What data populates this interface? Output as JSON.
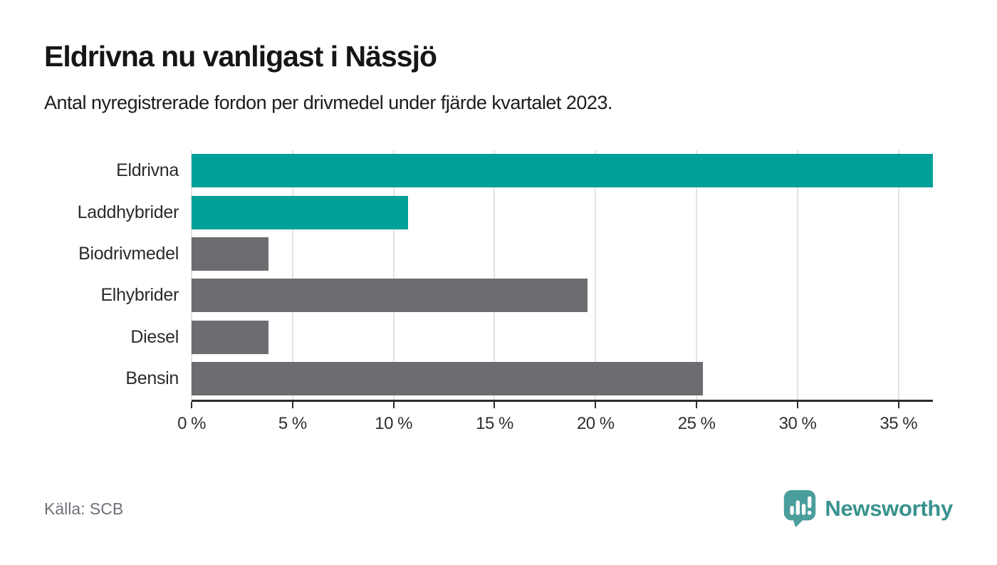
{
  "chart_data": {
    "type": "bar",
    "orientation": "horizontal",
    "title": "Eldrivna nu vanligast i Nässjö",
    "subtitle": "Antal nyregistrerade fordon per drivmedel under fjärde kvartalet 2023.",
    "categories": [
      "Eldrivna",
      "Laddhybrider",
      "Biodrivmedel",
      "Elhybrider",
      "Diesel",
      "Bensin"
    ],
    "values": [
      36.7,
      10.7,
      3.8,
      19.6,
      3.8,
      25.3
    ],
    "unit": "%",
    "bar_colors": [
      "#00A099",
      "#00A099",
      "#6C6C71",
      "#6C6C71",
      "#6C6C71",
      "#6C6C71"
    ],
    "highlight_color": "#00A099",
    "default_color": "#6C6C71",
    "xlim": [
      0,
      36.7
    ],
    "x_ticks": {
      "values": [
        0,
        5,
        10,
        15,
        20,
        25,
        30,
        35
      ],
      "labels": [
        "0 %",
        "5 %",
        "10 %",
        "15 %",
        "20 %",
        "25 %",
        "30 %",
        "35 %"
      ]
    },
    "grid": true,
    "legend": false,
    "source": "Källa: SCB"
  },
  "footer": {
    "brand": "Newsworthy",
    "logo_icon": "newsworthy-speech-bubble-chart-icon",
    "brand_color": "#39928e",
    "logo_fill": "#4a9e9b"
  }
}
